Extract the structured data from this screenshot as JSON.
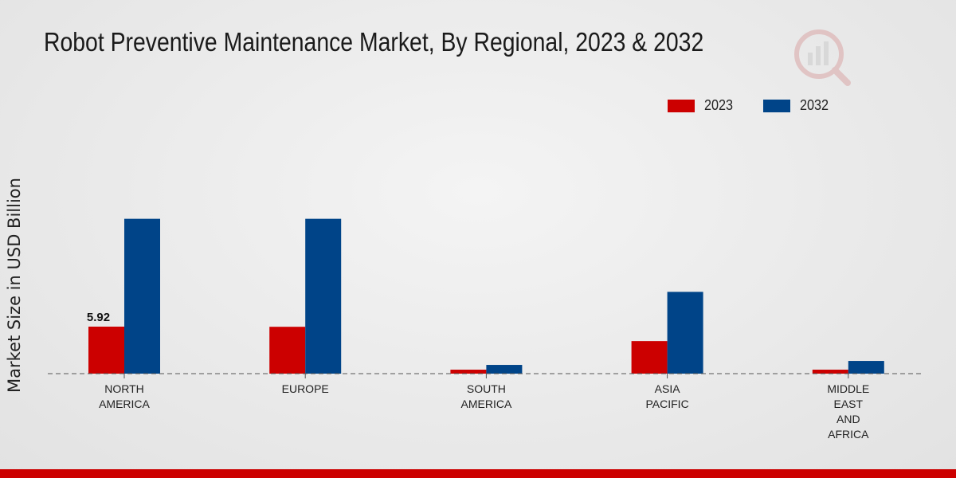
{
  "chart_data": {
    "type": "bar",
    "title": "Robot Preventive Maintenance Market, By Regional, 2023 & 2032",
    "xlabel": "",
    "ylabel": "Market Size in USD Billion",
    "categories": [
      [
        "NORTH",
        "AMERICA"
      ],
      [
        "EUROPE"
      ],
      [
        "SOUTH",
        "AMERICA"
      ],
      [
        "ASIA",
        "PACIFIC"
      ],
      [
        "MIDDLE",
        "EAST",
        "AND",
        "AFRICA"
      ]
    ],
    "series": [
      {
        "name": "2023",
        "color": "#cc0000",
        "values": [
          5.92,
          5.9,
          0.5,
          4.1,
          0.5
        ]
      },
      {
        "name": "2032",
        "color": "#004488",
        "values": [
          19.5,
          19.5,
          1.1,
          10.3,
          1.6
        ]
      }
    ],
    "data_labels": [
      {
        "series": 0,
        "index": 0,
        "text": "5.92"
      }
    ],
    "ylim": [
      0,
      30
    ],
    "legend_position": "top-right"
  }
}
